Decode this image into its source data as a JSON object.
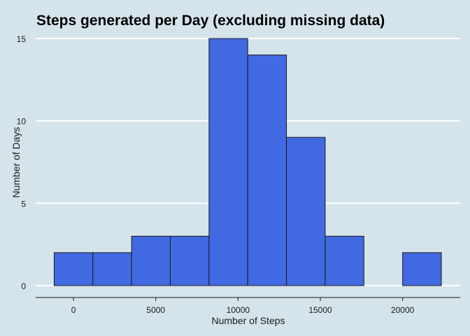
{
  "chart_data": {
    "type": "bar",
    "title": "Steps generated per Day (excluding missing data)",
    "xlabel": "Number of Steps",
    "ylabel": "Number of Days",
    "xlim": [
      -2300,
      23500
    ],
    "ylim": [
      0,
      15
    ],
    "bar_color": "#4169e1",
    "grid": "horizontal",
    "bins": [
      {
        "x0": -1176,
        "x1": 1176,
        "count": 2
      },
      {
        "x0": 1176,
        "x1": 3529,
        "count": 2
      },
      {
        "x0": 3529,
        "x1": 5882,
        "count": 3
      },
      {
        "x0": 5882,
        "x1": 8235,
        "count": 3
      },
      {
        "x0": 8235,
        "x1": 10588,
        "count": 15
      },
      {
        "x0": 10588,
        "x1": 12941,
        "count": 14
      },
      {
        "x0": 12941,
        "x1": 15294,
        "count": 9
      },
      {
        "x0": 15294,
        "x1": 17647,
        "count": 3
      },
      {
        "x0": 17647,
        "x1": 20000,
        "count": 0
      },
      {
        "x0": 20000,
        "x1": 22353,
        "count": 2
      }
    ],
    "x_ticks": [
      {
        "value": 0,
        "label": "0"
      },
      {
        "value": 5000,
        "label": "5000"
      },
      {
        "value": 10000,
        "label": "10000"
      },
      {
        "value": 15000,
        "label": "15000"
      },
      {
        "value": 20000,
        "label": "20000"
      }
    ],
    "y_ticks": [
      {
        "value": 0,
        "label": "0"
      },
      {
        "value": 5,
        "label": "5"
      },
      {
        "value": 10,
        "label": "10"
      },
      {
        "value": 15,
        "label": "15"
      }
    ]
  }
}
